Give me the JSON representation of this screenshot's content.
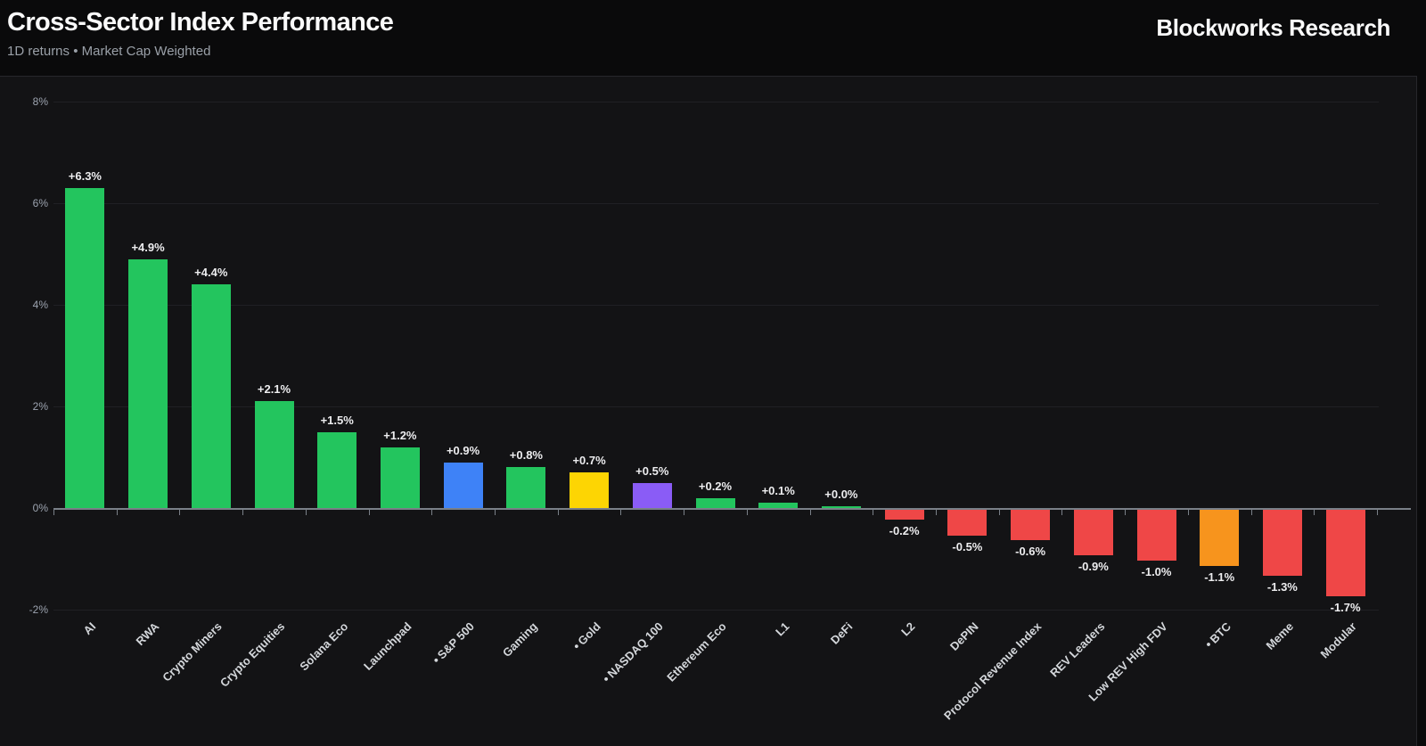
{
  "header": {
    "title": "Cross-Sector Index Performance",
    "subtitle": "1D returns • Market Cap Weighted",
    "brand": "Blockworks Research"
  },
  "colors": {
    "green": "#23c55e",
    "red": "#ef4747",
    "blue": "#3e82f7",
    "yellow": "#fdd503",
    "purple": "#8a5cf6",
    "orange": "#f7941d",
    "axis": "#7a8088",
    "grid": "#202024",
    "y_tick_label": "#9ca3af",
    "value_label": "#ededef",
    "x_label": "#d4d7db"
  },
  "chart_data": {
    "type": "bar",
    "title": "Cross-Sector Index Performance",
    "subtitle": "1D returns • Market Cap Weighted",
    "ylim": [
      -2.4,
      8.4
    ],
    "yticks": [
      8,
      6,
      4,
      2,
      0,
      -2
    ],
    "ytick_labels": [
      "8%",
      "6%",
      "4%",
      "2%",
      "0%",
      "-2%"
    ],
    "grid": true,
    "legend": "none",
    "bars": [
      {
        "label": "AI",
        "value": 6.3,
        "display": "+6.3%",
        "color": "green",
        "dot": false
      },
      {
        "label": "RWA",
        "value": 4.9,
        "display": "+4.9%",
        "color": "green",
        "dot": false
      },
      {
        "label": "Crypto Miners",
        "value": 4.4,
        "display": "+4.4%",
        "color": "green",
        "dot": false
      },
      {
        "label": "Crypto Equities",
        "value": 2.1,
        "display": "+2.1%",
        "color": "green",
        "dot": false
      },
      {
        "label": "Solana Eco",
        "value": 1.5,
        "display": "+1.5%",
        "color": "green",
        "dot": false
      },
      {
        "label": "Launchpad",
        "value": 1.2,
        "display": "+1.2%",
        "color": "green",
        "dot": false
      },
      {
        "label": "S&P 500",
        "value": 0.9,
        "display": "+0.9%",
        "color": "blue",
        "dot": true
      },
      {
        "label": "Gaming",
        "value": 0.8,
        "display": "+0.8%",
        "color": "green",
        "dot": false
      },
      {
        "label": "Gold",
        "value": 0.7,
        "display": "+0.7%",
        "color": "yellow",
        "dot": true
      },
      {
        "label": "NASDAQ 100",
        "value": 0.5,
        "display": "+0.5%",
        "color": "purple",
        "dot": true
      },
      {
        "label": "Ethereum Eco",
        "value": 0.2,
        "display": "+0.2%",
        "color": "green",
        "dot": false
      },
      {
        "label": "L1",
        "value": 0.1,
        "display": "+0.1%",
        "color": "green",
        "dot": false
      },
      {
        "label": "DeFi",
        "value": 0.0,
        "display": "+0.0%",
        "color": "green",
        "dot": false
      },
      {
        "label": "L2",
        "value": -0.2,
        "display": "-0.2%",
        "color": "red",
        "dot": false
      },
      {
        "label": "DePIN",
        "value": -0.5,
        "display": "-0.5%",
        "color": "red",
        "dot": false
      },
      {
        "label": "Protocol Revenue Index",
        "value": -0.6,
        "display": "-0.6%",
        "color": "red",
        "dot": false
      },
      {
        "label": "REV Leaders",
        "value": -0.9,
        "display": "-0.9%",
        "color": "red",
        "dot": false
      },
      {
        "label": "Low REV High FDV",
        "value": -1.0,
        "display": "-1.0%",
        "color": "red",
        "dot": false
      },
      {
        "label": "BTC",
        "value": -1.1,
        "display": "-1.1%",
        "color": "orange",
        "dot": true
      },
      {
        "label": "Meme",
        "value": -1.3,
        "display": "-1.3%",
        "color": "red",
        "dot": false
      },
      {
        "label": "Modular",
        "value": -1.7,
        "display": "-1.7%",
        "color": "red",
        "dot": false
      }
    ]
  }
}
